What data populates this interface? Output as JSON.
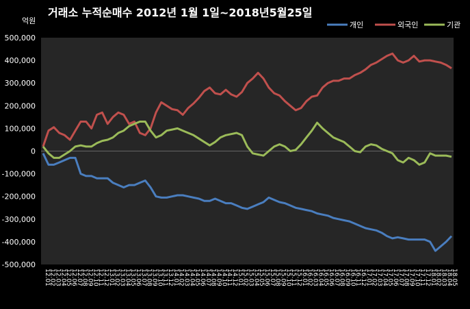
{
  "chart_data": {
    "type": "line",
    "title": "거래소  누적순매수 2012년 1월 1일~2018년5월25일",
    "unit_label": "억원",
    "ylim": [
      -500000,
      500000
    ],
    "yticks": [
      500000,
      400000,
      300000,
      200000,
      100000,
      0,
      -100000,
      -200000,
      -300000,
      -400000,
      -500000
    ],
    "ytick_labels": [
      "500,000",
      "400,000",
      "300,000",
      "200,000",
      "100,000",
      "0",
      "-100,000",
      "-200,000",
      "-300,000",
      "-400,000",
      "-500,000"
    ],
    "x_labels": [
      "12.01",
      "12.02",
      "12.03",
      "12.04",
      "12.05",
      "12.06",
      "12.07",
      "12.08",
      "12.09",
      "12.10",
      "12.11",
      "12.12",
      "13.01",
      "13.02",
      "13.03",
      "13.04",
      "13.05",
      "13.06",
      "13.07",
      "13.08",
      "13.09",
      "13.10",
      "13.11",
      "13.12",
      "14.01",
      "14.02",
      "14.03",
      "14.04",
      "14.05",
      "14.06",
      "14.07",
      "14.08",
      "14.09",
      "14.10",
      "14.11",
      "14.12",
      "15.01",
      "15.02",
      "15.03",
      "15.04",
      "15.05",
      "15.06",
      "15.07",
      "15.08",
      "15.09",
      "15.10",
      "15.11",
      "15.12",
      "16.01",
      "16.02",
      "16.03",
      "16.04",
      "16.05",
      "16.06",
      "16.07",
      "16.08",
      "16.09",
      "16.10",
      "16.11",
      "16.12",
      "17.01",
      "17.02",
      "17.03",
      "17.04",
      "17.05",
      "17.06",
      "17.07",
      "17.08",
      "17.09",
      "17.10",
      "17.11",
      "17.12",
      "18.01",
      "18.02",
      "18.03",
      "18.04",
      "18.05"
    ],
    "grid": false,
    "legend_position": "top-right",
    "series": [
      {
        "name": "개인",
        "color": "#4a7ebf",
        "values": [
          -10000,
          -60000,
          -60000,
          -50000,
          -40000,
          -30000,
          -30000,
          -100000,
          -110000,
          -110000,
          -120000,
          -120000,
          -120000,
          -140000,
          -150000,
          -160000,
          -150000,
          -150000,
          -140000,
          -130000,
          -160000,
          -200000,
          -205000,
          -205000,
          -200000,
          -195000,
          -195000,
          -200000,
          -205000,
          -210000,
          -220000,
          -220000,
          -210000,
          -220000,
          -230000,
          -230000,
          -240000,
          -250000,
          -255000,
          -245000,
          -235000,
          -225000,
          -205000,
          -215000,
          -225000,
          -230000,
          -240000,
          -250000,
          -255000,
          -260000,
          -265000,
          -275000,
          -280000,
          -285000,
          -295000,
          -300000,
          -305000,
          -310000,
          -320000,
          -330000,
          -340000,
          -345000,
          -350000,
          -360000,
          -375000,
          -385000,
          -380000,
          -385000,
          -390000,
          -390000,
          -390000,
          -390000,
          -400000,
          -440000,
          -420000,
          -400000,
          -375000
        ]
      },
      {
        "name": "외국인",
        "color": "#c0504d",
        "values": [
          20000,
          90000,
          105000,
          80000,
          70000,
          50000,
          90000,
          130000,
          130000,
          100000,
          160000,
          170000,
          120000,
          150000,
          170000,
          160000,
          120000,
          130000,
          80000,
          70000,
          100000,
          170000,
          215000,
          200000,
          185000,
          180000,
          160000,
          190000,
          210000,
          235000,
          265000,
          280000,
          255000,
          250000,
          270000,
          250000,
          240000,
          260000,
          300000,
          320000,
          345000,
          320000,
          280000,
          255000,
          245000,
          220000,
          200000,
          180000,
          190000,
          220000,
          240000,
          245000,
          280000,
          300000,
          310000,
          310000,
          320000,
          320000,
          335000,
          345000,
          360000,
          380000,
          390000,
          405000,
          420000,
          430000,
          400000,
          390000,
          400000,
          420000,
          395000,
          400000,
          400000,
          395000,
          390000,
          380000,
          365000
        ]
      },
      {
        "name": "기관",
        "color": "#9bbb59",
        "values": [
          20000,
          -10000,
          -30000,
          -30000,
          -15000,
          0,
          20000,
          25000,
          20000,
          20000,
          35000,
          45000,
          50000,
          60000,
          80000,
          90000,
          110000,
          120000,
          130000,
          130000,
          90000,
          60000,
          70000,
          90000,
          95000,
          100000,
          90000,
          80000,
          70000,
          55000,
          40000,
          25000,
          40000,
          60000,
          70000,
          75000,
          80000,
          70000,
          20000,
          -10000,
          -15000,
          -20000,
          0,
          20000,
          30000,
          20000,
          0,
          5000,
          30000,
          60000,
          90000,
          125000,
          100000,
          80000,
          60000,
          50000,
          40000,
          20000,
          0,
          -5000,
          20000,
          30000,
          25000,
          10000,
          0,
          -10000,
          -40000,
          -50000,
          -30000,
          -40000,
          -60000,
          -50000,
          -10000,
          -20000,
          -20000,
          -20000,
          -25000
        ]
      }
    ]
  }
}
